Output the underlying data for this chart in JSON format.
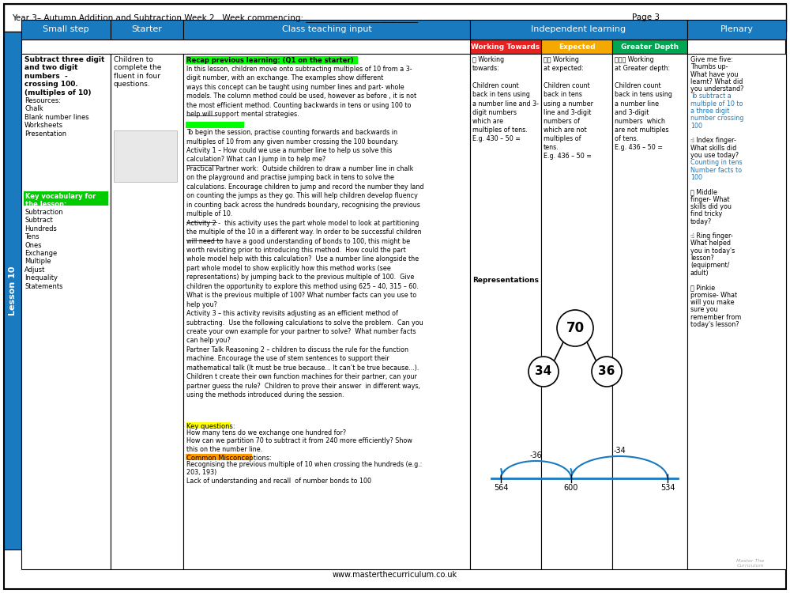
{
  "title_line": "Year 3– Autumn Addition and Subtraction Week 2   Week commencing: ___________________________",
  "page": "Page 3",
  "lesson_label": "Lesson 10",
  "col_headers": [
    "Small step",
    "Starter",
    "Class teaching input",
    "Independent learning",
    "Plenary"
  ],
  "working_towards_bg": "#e52222",
  "expected_bg": "#f5a800",
  "greater_depth_bg": "#00a651",
  "footer_text": "www.masterthecurriculum.co.uk",
  "number_bond_top": "70",
  "number_bond_left": "34",
  "number_bond_right": "36",
  "arrow_left_label": "-36",
  "arrow_right_label": "-34",
  "num_line_left": "564",
  "num_line_mid": "600",
  "num_line_right": "534",
  "bg_color": "#ffffff",
  "blue_color": "#1a7abf",
  "green_highlight": "#00ff00",
  "yellow_highlight": "#ffff00",
  "orange_highlight": "#ff9900",
  "green_bg_key": "#00cc00",
  "blue_text_links": "#1a7abf",
  "representations_label": "Representations"
}
